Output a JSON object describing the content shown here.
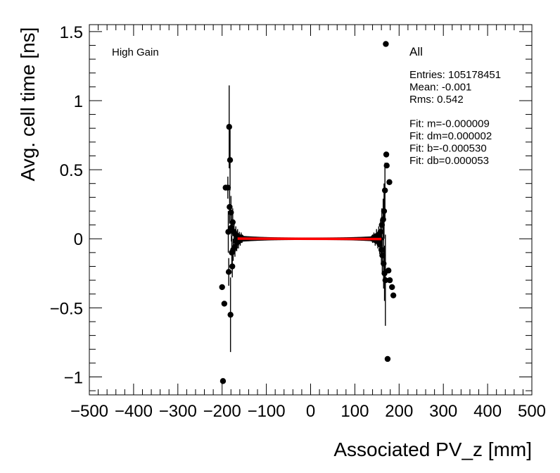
{
  "chart_data": {
    "type": "scatter",
    "xlabel": "Associated PV_z [mm]",
    "ylabel": "Avg. cell time [ns]",
    "xlim": [
      -500,
      500
    ],
    "ylim": [
      -1.13,
      1.55
    ],
    "xticks": [
      -500,
      -400,
      -300,
      -200,
      -100,
      0,
      100,
      200,
      300,
      400,
      500
    ],
    "xtick_labels": [
      "−500",
      "−400",
      "−300",
      "−200",
      "−100",
      "0",
      "100",
      "200",
      "300",
      "400",
      "500"
    ],
    "yticks": [
      -1,
      -0.5,
      0,
      0.5,
      1,
      1.5
    ],
    "ytick_labels": [
      "−1",
      "−0.5",
      "0",
      "0.5",
      "1",
      "1.5"
    ],
    "annotations": {
      "gain_label": "High Gain",
      "selection_label": "All",
      "stats": [
        "Entries: 105178451",
        "Mean: -0.001",
        "Rms: 0.542",
        "",
        "Fit: m=-0.000009",
        "Fit: dm=0.000002",
        "Fit: b=-0.000530",
        "Fit: db=0.000053"
      ]
    },
    "fit_line": {
      "x": [
        -165,
        160
      ],
      "y": [
        0.001,
        -0.002
      ],
      "color": "#ff0000"
    },
    "points": [
      {
        "x": -198,
        "y": -1.03,
        "err": 0
      },
      {
        "x": -200,
        "y": -0.35,
        "err": 0
      },
      {
        "x": -195,
        "y": -0.47,
        "err": 0
      },
      {
        "x": -192,
        "y": 0.37,
        "err": 0
      },
      {
        "x": -187,
        "y": 0.37,
        "err": 0.08
      },
      {
        "x": -184,
        "y": 0.81,
        "err": 0.3
      },
      {
        "x": -183,
        "y": 0.23,
        "err": 0.12
      },
      {
        "x": -182,
        "y": 0.57,
        "err": 0.22
      },
      {
        "x": -181,
        "y": -0.55,
        "err": 0.27
      },
      {
        "x": -180,
        "y": 0.19,
        "err": 0.12
      },
      {
        "x": -185,
        "y": -0.24,
        "err": 0.1
      },
      {
        "x": -178,
        "y": -0.1,
        "err": 0.12
      },
      {
        "x": -186,
        "y": 0.05,
        "err": 0.15
      },
      {
        "x": -176,
        "y": 0.12,
        "err": 0.1
      },
      {
        "x": -177,
        "y": -0.2,
        "err": 0.08
      },
      {
        "x": -179,
        "y": 0.08,
        "err": 0.1
      },
      {
        "x": -175,
        "y": -0.08,
        "err": 0.08
      },
      {
        "x": -173,
        "y": 0.05,
        "err": 0.08
      },
      {
        "x": -171,
        "y": -0.06,
        "err": 0.07
      },
      {
        "x": -169,
        "y": 0.03,
        "err": 0.06
      },
      {
        "x": -167,
        "y": -0.03,
        "err": 0.06
      },
      {
        "x": -165,
        "y": 0.02,
        "err": 0.05
      },
      {
        "x": -163,
        "y": -0.02,
        "err": 0.05
      },
      {
        "x": -161,
        "y": 0.01,
        "err": 0.04
      },
      {
        "x": -159,
        "y": -0.01,
        "err": 0.04
      },
      {
        "x": -157,
        "y": 0.01,
        "err": 0.035
      },
      {
        "x": -155,
        "y": 0.0,
        "err": 0.03
      },
      {
        "x": 140,
        "y": 0.0,
        "err": 0.03
      },
      {
        "x": 143,
        "y": 0.01,
        "err": 0.035
      },
      {
        "x": 146,
        "y": -0.01,
        "err": 0.04
      },
      {
        "x": 149,
        "y": 0.02,
        "err": 0.05
      },
      {
        "x": 152,
        "y": -0.02,
        "err": 0.05
      },
      {
        "x": 154,
        "y": 0.03,
        "err": 0.06
      },
      {
        "x": 156,
        "y": -0.04,
        "err": 0.07
      },
      {
        "x": 158,
        "y": 0.05,
        "err": 0.09
      },
      {
        "x": 160,
        "y": -0.08,
        "err": 0.1
      },
      {
        "x": 161,
        "y": 0.1,
        "err": 0.12
      },
      {
        "x": 162,
        "y": -0.12,
        "err": 0.13
      },
      {
        "x": 164,
        "y": 0.14,
        "err": 0.15
      },
      {
        "x": 165,
        "y": -0.18,
        "err": 0.18
      },
      {
        "x": 166,
        "y": 0.2,
        "err": 0.2
      },
      {
        "x": 167,
        "y": -0.25,
        "err": 0.2
      },
      {
        "x": 168,
        "y": 0.35,
        "err": 0.2
      },
      {
        "x": 169,
        "y": -0.3,
        "err": 0.33
      },
      {
        "x": 170,
        "y": 1.41,
        "err": 0
      },
      {
        "x": 171,
        "y": 0.61,
        "err": 0
      },
      {
        "x": 172,
        "y": 0.53,
        "err": 0
      },
      {
        "x": 174,
        "y": -0.87,
        "err": 0
      },
      {
        "x": 178,
        "y": 0.41,
        "err": 0
      },
      {
        "x": 176,
        "y": -0.23,
        "err": 0
      },
      {
        "x": 179,
        "y": -0.3,
        "err": 0
      },
      {
        "x": 184,
        "y": -0.35,
        "err": 0
      },
      {
        "x": 187,
        "y": -0.41,
        "err": 0
      }
    ]
  }
}
